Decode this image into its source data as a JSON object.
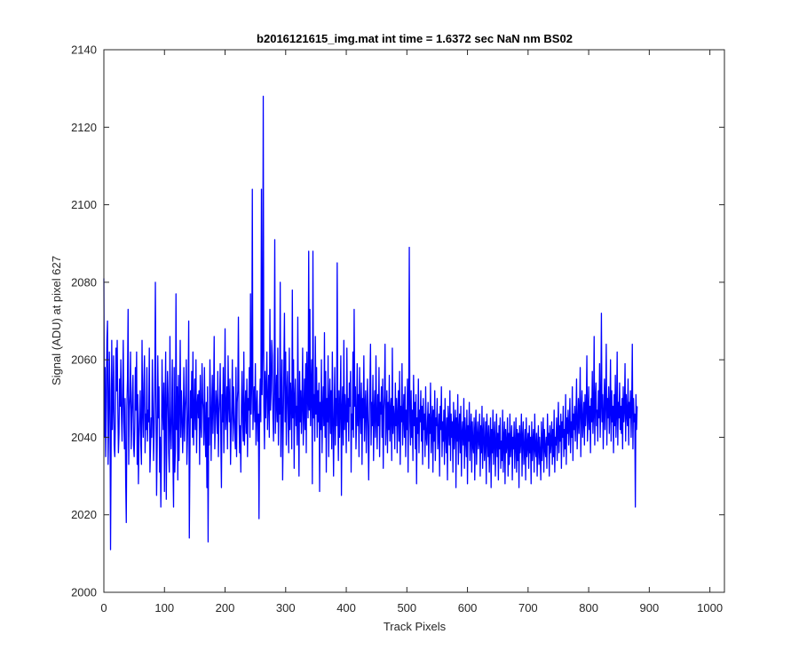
{
  "chart_data": {
    "type": "line",
    "title": "b2016121615_img.mat int time = 1.6372 sec  NaN nm BS02",
    "xlabel": "Track Pixels",
    "ylabel": "Signal (ADU) at pixel 627",
    "xlim": [
      0,
      1024
    ],
    "ylim": [
      2000,
      2140
    ],
    "xticks": [
      0,
      100,
      200,
      300,
      400,
      500,
      600,
      700,
      800,
      900,
      1000
    ],
    "yticks": [
      2000,
      2020,
      2040,
      2060,
      2080,
      2100,
      2120,
      2140
    ],
    "grid": false,
    "series": [
      {
        "color": "#0000ff",
        "x_start": 0,
        "x_step": 1,
        "values": [
          2081,
          2040,
          2058,
          2035,
          2048,
          2065,
          2070,
          2033,
          2044,
          2062,
          2052,
          2011,
          2038,
          2065,
          2042,
          2050,
          2061,
          2038,
          2035,
          2044,
          2063,
          2052,
          2065,
          2048,
          2036,
          2041,
          2055,
          2048,
          2060,
          2046,
          2039,
          2052,
          2065,
          2044,
          2037,
          2050,
          2029,
          2018,
          2048,
          2055,
          2073,
          2033,
          2047,
          2051,
          2062,
          2037,
          2044,
          2051,
          2056,
          2038,
          2035,
          2043,
          2058,
          2047,
          2062,
          2033,
          2051,
          2028,
          2040,
          2046,
          2052,
          2038,
          2033,
          2065,
          2047,
          2040,
          2054,
          2061,
          2036,
          2046,
          2042,
          2058,
          2039,
          2047,
          2044,
          2063,
          2031,
          2037,
          2045,
          2040,
          2060,
          2048,
          2034,
          2042,
          2053,
          2080,
          2049,
          2025,
          2038,
          2061,
          2045,
          2053,
          2031,
          2040,
          2022,
          2036,
          2060,
          2047,
          2042,
          2054,
          2026,
          2048,
          2062,
          2024,
          2045,
          2057,
          2051,
          2036,
          2031,
          2066,
          2043,
          2037,
          2046,
          2060,
          2034,
          2022,
          2058,
          2031,
          2037,
          2077,
          2042,
          2053,
          2029,
          2056,
          2034,
          2048,
          2065,
          2040,
          2052,
          2046,
          2036,
          2044,
          2058,
          2039,
          2047,
          2051,
          2060,
          2033,
          2040,
          2048,
          2070,
          2014,
          2035,
          2052,
          2045,
          2057,
          2040,
          2062,
          2038,
          2046,
          2055,
          2042,
          2060,
          2036,
          2048,
          2051,
          2045,
          2052,
          2033,
          2056,
          2044,
          2040,
          2059,
          2050,
          2047,
          2038,
          2058,
          2043,
          2035,
          2049,
          2027,
          2053,
          2013,
          2045,
          2038,
          2060,
          2050,
          2034,
          2047,
          2056,
          2041,
          2049,
          2066,
          2037,
          2044,
          2052,
          2048,
          2041,
          2057,
          2035,
          2046,
          2050,
          2059,
          2039,
          2027,
          2051,
          2044,
          2058,
          2036,
          2048,
          2068,
          2042,
          2046,
          2053,
          2037,
          2061,
          2049,
          2044,
          2055,
          2033,
          2042,
          2048,
          2060,
          2039,
          2053,
          2046,
          2041,
          2037,
          2058,
          2035,
          2049,
          2052,
          2071,
          2045,
          2036,
          2043,
          2031,
          2048,
          2057,
          2044,
          2039,
          2062,
          2038,
          2046,
          2052,
          2041,
          2055,
          2035,
          2050,
          2047,
          2058,
          2040,
          2077,
          2046,
          2054,
          2104,
          2042,
          2049,
          2053,
          2044,
          2059,
          2038,
          2047,
          2052,
          2039,
          2046,
          2019,
          2048,
          2055,
          2044,
          2104,
          2051,
          2063,
          2128,
          2048,
          2037,
          2057,
          2045,
          2053,
          2062,
          2042,
          2049,
          2056,
          2040,
          2073,
          2047,
          2052,
          2065,
          2061,
          2045,
          2039,
          2053,
          2091,
          2041,
          2048,
          2056,
          2044,
          2063,
          2038,
          2050,
          2046,
          2080,
          2035,
          2049,
          2060,
          2029,
          2043,
          2058,
          2072,
          2044,
          2062,
          2038,
          2051,
          2057,
          2046,
          2036,
          2063,
          2042,
          2054,
          2049,
          2037,
          2078,
          2045,
          2060,
          2032,
          2050,
          2055,
          2043,
          2048,
          2038,
          2071,
          2046,
          2030,
          2057,
          2044,
          2052,
          2041,
          2049,
          2063,
          2038,
          2046,
          2055,
          2042,
          2059,
          2036,
          2062,
          2051,
          2045,
          2088,
          2047,
          2073,
          2043,
          2053,
          2060,
          2028,
          2088,
          2045,
          2051,
          2039,
          2066,
          2046,
          2058,
          2040,
          2052,
          2044,
          2054,
          2026,
          2049,
          2042,
          2060,
          2036,
          2047,
          2053,
          2043,
          2067,
          2040,
          2057,
          2031,
          2050,
          2044,
          2061,
          2035,
          2048,
          2055,
          2041,
          2052,
          2037,
          2062,
          2045,
          2030,
          2046,
          2058,
          2038,
          2050,
          2043,
          2085,
          2046,
          2034,
          2052,
          2040,
          2049,
          2061,
          2025,
          2047,
          2053,
          2038,
          2065,
          2042,
          2051,
          2046,
          2036,
          2063,
          2044,
          2050,
          2039,
          2054,
          2048,
          2057,
          2031,
          2046,
          2042,
          2062,
          2040,
          2073,
          2048,
          2053,
          2037,
          2044,
          2059,
          2043,
          2051,
          2035,
          2058,
          2047,
          2041,
          2054,
          2033,
          2050,
          2045,
          2061,
          2039,
          2048,
          2052,
          2036,
          2046,
          2055,
          2042,
          2029,
          2044,
          2053,
          2064,
          2038,
          2049,
          2043,
          2056,
          2034,
          2047,
          2052,
          2040,
          2061,
          2045,
          2037,
          2051,
          2043,
          2058,
          2035,
          2049,
          2046,
          2053,
          2040,
          2055,
          2032,
          2047,
          2051,
          2064,
          2038,
          2045,
          2052,
          2036,
          2049,
          2042,
          2056,
          2039,
          2047,
          2050,
          2034,
          2063,
          2041,
          2048,
          2045,
          2037,
          2054,
          2043,
          2050,
          2036,
          2046,
          2052,
          2039,
          2057,
          2033,
          2048,
          2044,
          2059,
          2038,
          2045,
          2051,
          2040,
          2053,
          2035,
          2047,
          2042,
          2055,
          2031,
          2049,
          2089,
          2044,
          2038,
          2052,
          2040,
          2047,
          2034,
          2056,
          2043,
          2049,
          2037,
          2051,
          2028,
          2045,
          2041,
          2055,
          2036,
          2047,
          2044,
          2052,
          2039,
          2048,
          2033,
          2050,
          2042,
          2046,
          2035,
          2053,
          2040,
          2038,
          2044,
          2049,
          2032,
          2046,
          2041,
          2054,
          2036,
          2043,
          2048,
          2031,
          2047,
          2039,
          2052,
          2034,
          2045,
          2043,
          2050,
          2037,
          2041,
          2046,
          2030,
          2048,
          2042,
          2053,
          2035,
          2044,
          2039,
          2047,
          2033,
          2050,
          2041,
          2036,
          2045,
          2029,
          2048,
          2043,
          2038,
          2052,
          2034,
          2046,
          2040,
          2044,
          2031,
          2049,
          2037,
          2043,
          2047,
          2027,
          2045,
          2039,
          2051,
          2033,
          2042,
          2046,
          2036,
          2048,
          2030,
          2041,
          2044,
          2038,
          2050,
          2032,
          2045,
          2040,
          2035,
          2047,
          2028,
          2043,
          2039,
          2049,
          2034,
          2041,
          2046,
          2031,
          2044,
          2038,
          2036,
          2045,
          2029,
          2042,
          2047,
          2033,
          2040,
          2044,
          2037,
          2039,
          2046,
          2030,
          2043,
          2036,
          2048,
          2032,
          2041,
          2045,
          2034,
          2038,
          2044,
          2028,
          2046,
          2040,
          2035,
          2043,
          2031,
          2039,
          2045,
          2027,
          2042,
          2036,
          2047,
          2033,
          2040,
          2044,
          2030,
          2038,
          2046,
          2035,
          2041,
          2029,
          2043,
          2037,
          2045,
          2032,
          2039,
          2034,
          2047,
          2031,
          2040,
          2044,
          2028,
          2042,
          2036,
          2038,
          2045,
          2030,
          2041,
          2033,
          2046,
          2035,
          2039,
          2043,
          2029,
          2040,
          2037,
          2044,
          2032,
          2038,
          2045,
          2031,
          2042,
          2034,
          2041,
          2027,
          2043,
          2036,
          2039,
          2046,
          2030,
          2040,
          2044,
          2033,
          2037,
          2042,
          2029,
          2045,
          2035,
          2038,
          2041,
          2032,
          2043,
          2036,
          2040,
          2028,
          2044,
          2034,
          2039,
          2042,
          2031,
          2046,
          2037,
          2035,
          2041,
          2030,
          2038,
          2043,
          2033,
          2040,
          2036,
          2029,
          2044,
          2034,
          2039,
          2045,
          2031,
          2042,
          2037,
          2035,
          2040,
          2032,
          2046,
          2038,
          2041,
          2030,
          2043,
          2036,
          2039,
          2044,
          2033,
          2042,
          2035,
          2047,
          2031,
          2040,
          2038,
          2045,
          2034,
          2041,
          2049,
          2036,
          2043,
          2039,
          2046,
          2032,
          2044,
          2040,
          2048,
          2035,
          2042,
          2037,
          2051,
          2033,
          2045,
          2041,
          2047,
          2038,
          2043,
          2050,
          2036,
          2044,
          2040,
          2053,
          2034,
          2046,
          2042,
          2048,
          2039,
          2045,
          2055,
          2037,
          2043,
          2050,
          2041,
          2047,
          2058,
          2035,
          2046,
          2052,
          2040,
          2044,
          2049,
          2038,
          2051,
          2043,
          2047,
          2061,
          2039,
          2045,
          2053,
          2042,
          2048,
          2036,
          2050,
          2044,
          2057,
          2041,
          2046,
          2066,
          2038,
          2049,
          2054,
          2043,
          2047,
          2039,
          2052,
          2045,
          2059,
          2040,
          2048,
          2072,
          2044,
          2051,
          2037,
          2046,
          2055,
          2042,
          2049,
          2064,
          2038,
          2050,
          2045,
          2053,
          2041,
          2047,
          2060,
          2039,
          2052,
          2044,
          2048,
          2036,
          2051,
          2043,
          2056,
          2040,
          2046,
          2062,
          2038,
          2049,
          2045,
          2054,
          2042,
          2048,
          2041,
          2050,
          2037,
          2053,
          2044,
          2047,
          2059,
          2039,
          2051,
          2046,
          2043,
          2055,
          2038,
          2049,
          2045,
          2052,
          2040,
          2048,
          2064,
          2037,
          2050,
          2044,
          2046,
          2022,
          2051,
          2042,
          2048
        ]
      }
    ]
  }
}
